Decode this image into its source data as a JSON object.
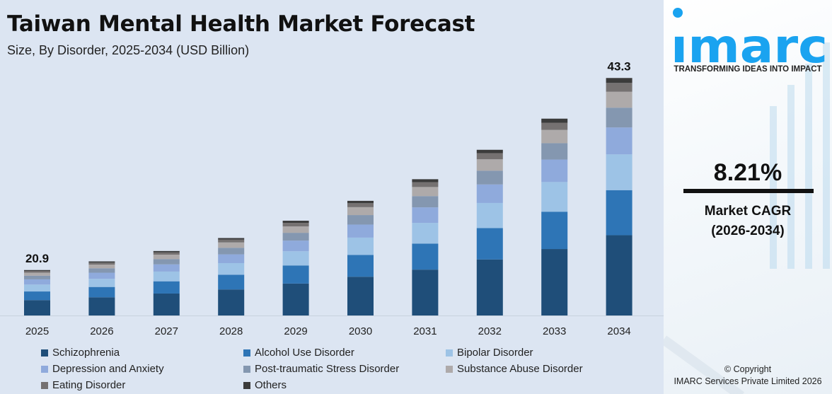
{
  "header": {
    "title": "Taiwan Mental Health Market Forecast",
    "subtitle": "Size, By Disorder, 2025-2034 (USD Billion)"
  },
  "chart_data": {
    "type": "bar",
    "stacked": true,
    "title": "Taiwan Mental Health Market Forecast",
    "subtitle": "Size, By Disorder, 2025-2034 (USD Billion)",
    "categories": [
      "2025",
      "2026",
      "2027",
      "2028",
      "2029",
      "2030",
      "2031",
      "2032",
      "2033",
      "2034"
    ],
    "total_labels": {
      "2025": "20.9",
      "2034": "43.3"
    },
    "legend_position": "bottom",
    "grid": false,
    "series": [
      {
        "name": "Schizophrenia",
        "color": "#1f4e79",
        "values": [
          7.1,
          7.4,
          7.9,
          8.3,
          9.0,
          9.8,
          10.6,
          11.8,
          13.0,
          14.6
        ]
      },
      {
        "name": "Alcohol Use Disorder",
        "color": "#2e75b6",
        "values": [
          4.0,
          4.2,
          4.4,
          4.7,
          5.1,
          5.5,
          6.0,
          6.6,
          7.3,
          8.2
        ]
      },
      {
        "name": "Bipolar Disorder",
        "color": "#9dc3e6",
        "values": [
          3.2,
          3.3,
          3.5,
          3.7,
          4.0,
          4.4,
          4.8,
          5.3,
          5.8,
          6.5
        ]
      },
      {
        "name": "Depression and Anxiety",
        "color": "#8faadc",
        "values": [
          2.4,
          2.5,
          2.6,
          2.8,
          3.0,
          3.3,
          3.6,
          3.9,
          4.4,
          4.9
        ]
      },
      {
        "name": "Post-traumatic Stress Disorder",
        "color": "#8497b0",
        "values": [
          1.7,
          1.8,
          1.9,
          2.1,
          2.2,
          2.4,
          2.6,
          2.9,
          3.2,
          3.6
        ]
      },
      {
        "name": "Substance Abuse Disorder",
        "color": "#aeaaaa",
        "values": [
          1.4,
          1.5,
          1.6,
          1.7,
          1.8,
          2.0,
          2.1,
          2.4,
          2.6,
          2.9
        ]
      },
      {
        "name": "Eating Disorder",
        "color": "#757171",
        "values": [
          0.8,
          0.8,
          0.8,
          0.9,
          1.0,
          1.0,
          1.1,
          1.3,
          1.4,
          1.6
        ]
      },
      {
        "name": "Others",
        "color": "#3b3b3b",
        "values": [
          0.4,
          0.5,
          0.5,
          0.5,
          0.6,
          0.6,
          0.7,
          0.7,
          0.8,
          0.9
        ]
      }
    ]
  },
  "sidebar": {
    "logo_text": "imarc",
    "logo_color": "#1aa3f0",
    "tagline": "TRANSFORMING IDEAS INTO IMPACT",
    "cagr_value": "8.21%",
    "cagr_label": "Market CAGR",
    "cagr_period": "(2026-2034)",
    "copyright_line1": "© Copyright",
    "copyright_line2": "IMARC Services Private Limited 2026"
  }
}
